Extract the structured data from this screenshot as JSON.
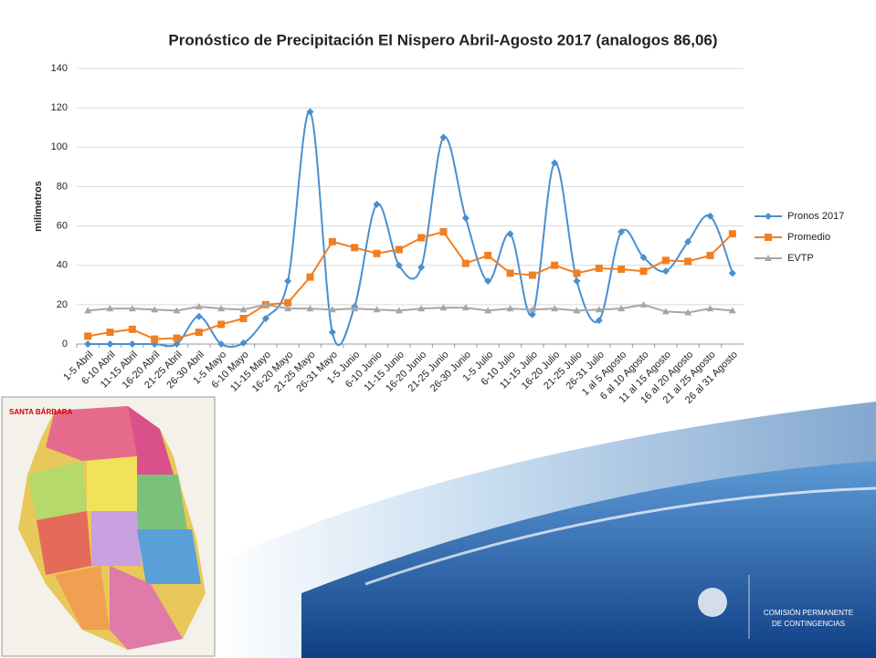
{
  "chart_data": {
    "type": "line",
    "title": "Pronóstico de Precipitación El Nispero Abril-Agosto 2017 (analogos 86,06)",
    "y_label": "milimetros",
    "categories": [
      "1-5 Abril",
      "6-10 Abril",
      "11-15 Abril",
      "16-20 Abril",
      "21-25 Abril",
      "26-30 Abril",
      "1-5 Mayo",
      "6-10 Mayo",
      "11-15 Mayo",
      "16-20 Mayo",
      "21-25 Mayo",
      "26-31 Mayo",
      "1-5 Junio",
      "6-10 Junio",
      "11-15 Junio",
      "16-20 Junio",
      "21-25 Junio",
      "26-30 Junio",
      "1-5 Julio",
      "6-10 Julio",
      "11-15 Julio",
      "16-20 Julio",
      "21-25 Julio",
      "26-31 Julio",
      "1 al 5 Agosto",
      "6 al 10 Agosto",
      "11 al 15 Agosto",
      "16 al 20 Agosto",
      "21 al 25 Agosto",
      "26 al 31 Agosto"
    ],
    "series": [
      {
        "name": "Pronos 2017",
        "color": "#4a8fd0",
        "marker": "diamond",
        "smooth": true,
        "values": [
          0,
          0,
          0,
          0,
          0,
          14,
          0,
          0.5,
          13,
          32,
          118,
          6,
          19,
          71,
          40,
          39,
          105,
          64,
          32,
          56,
          15,
          92,
          32,
          12,
          57,
          44,
          37,
          52,
          65,
          36
        ]
      },
      {
        "name": "Promedio",
        "color": "#f07f22",
        "marker": "square",
        "smooth": false,
        "values": [
          4,
          6,
          7.5,
          2.5,
          3,
          6,
          10,
          13,
          20,
          21,
          34,
          52,
          49,
          46,
          48,
          54,
          57,
          41,
          45,
          36,
          35,
          40,
          36,
          38.5,
          38,
          37,
          42.5,
          42,
          45,
          56
        ]
      },
      {
        "name": "EVTP",
        "color": "#a6a6a6",
        "marker": "triangle",
        "smooth": false,
        "values": [
          17,
          18,
          18,
          17.5,
          17,
          19,
          18,
          17.5,
          20,
          18,
          18,
          17.5,
          18,
          17.5,
          17,
          18,
          18.5,
          18.5,
          17,
          18,
          17.5,
          18,
          17,
          17.5,
          18,
          20,
          16.5,
          16,
          18,
          17
        ]
      }
    ],
    "ylim": [
      0,
      140
    ],
    "yticks": [
      0,
      20,
      40,
      60,
      80,
      100,
      120,
      140
    ],
    "grid": true,
    "legend": "right"
  },
  "slide": {
    "map_title": "SANTA BÁRBARA",
    "logo_text": [
      "COMISIÓN PERMANENTE",
      "DE CONTINGENCIAS"
    ]
  }
}
